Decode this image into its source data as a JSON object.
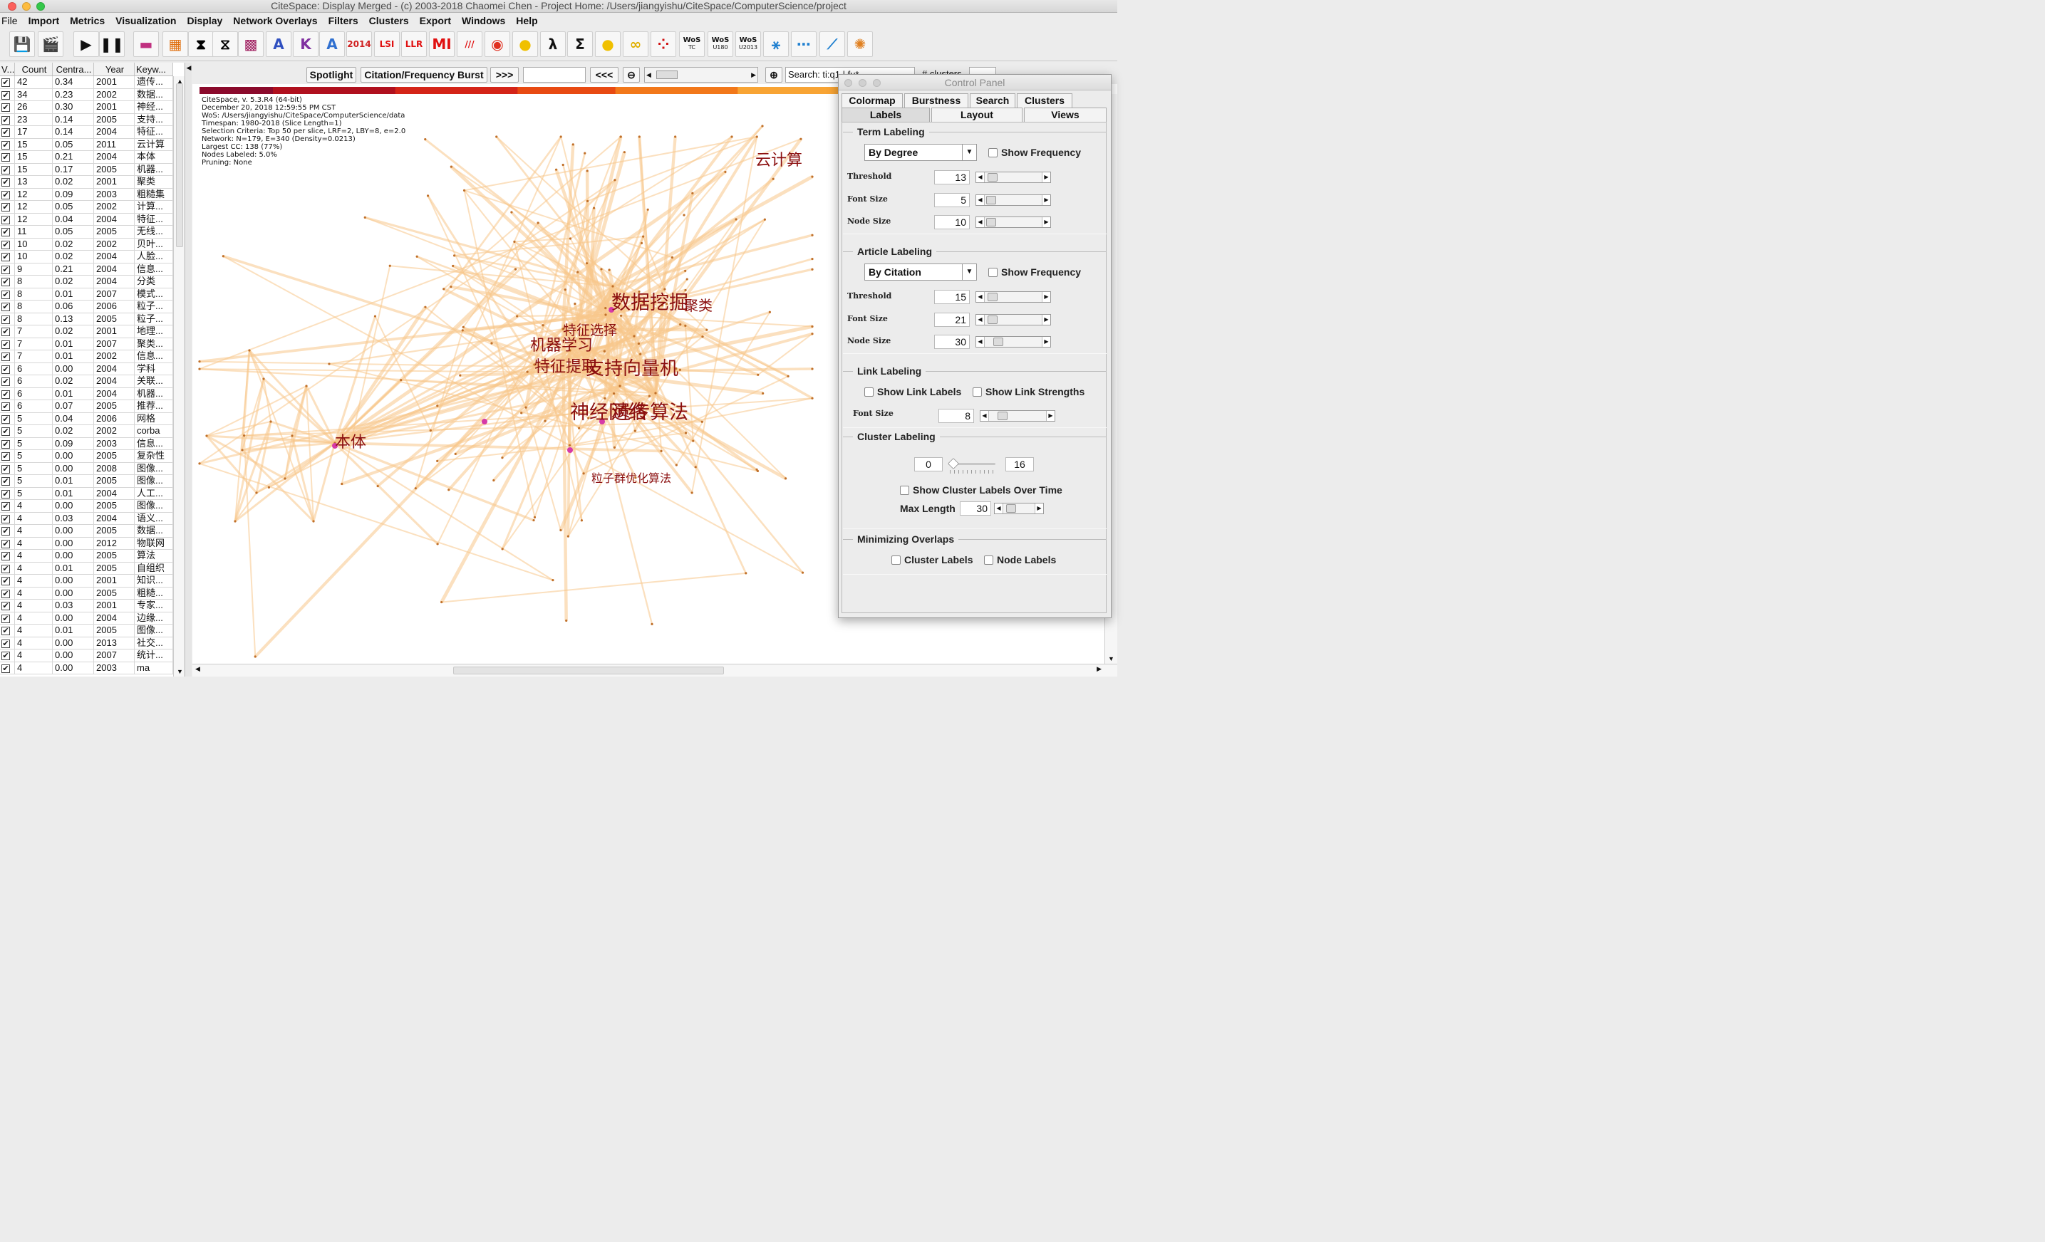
{
  "window": {
    "title": "CiteSpace: Display Merged - (c) 2003-2018 Chaomei Chen - Project Home: /Users/jiangyishu/CiteSpace/ComputerScience/project"
  },
  "menus": [
    "File",
    "Import",
    "Metrics",
    "Visualization",
    "Display",
    "Network Overlays",
    "Filters",
    "Clusters",
    "Export",
    "Windows",
    "Help"
  ],
  "toolbar": {
    "buttons": [
      {
        "icon": "save-icon",
        "glyph": "💾",
        "color": "#1b3f8f"
      },
      {
        "icon": "clapper-icon",
        "glyph": "🎬",
        "color": "#111"
      },
      {
        "icon": "play-icon",
        "glyph": "▶",
        "color": "#111"
      },
      {
        "icon": "pause-icon",
        "glyph": "❚❚",
        "color": "#111"
      },
      {
        "icon": "gradient-line-icon",
        "glyph": "▬",
        "color": "#c03080"
      },
      {
        "icon": "color-grid-icon",
        "glyph": "▦",
        "color": "#e07010"
      },
      {
        "icon": "hourglass-black-icon",
        "glyph": "⧗",
        "color": "#000"
      },
      {
        "icon": "hourglass-outline-icon",
        "glyph": "⧖",
        "color": "#000"
      },
      {
        "icon": "cluster-blocks-icon",
        "glyph": "▩",
        "color": "#a02060"
      },
      {
        "icon": "triangle-a-icon",
        "glyph": "A",
        "color": "#3050c0"
      },
      {
        "icon": "triangle-k-icon",
        "glyph": "K",
        "color": "#8030a0"
      },
      {
        "icon": "triangle-a2-icon",
        "glyph": "A",
        "color": "#3070d0"
      },
      {
        "icon": "year-range-icon",
        "glyph": "2014",
        "color": "#d02020"
      },
      {
        "icon": "lsi-icon",
        "glyph": "LSI",
        "color": "#e01010"
      },
      {
        "icon": "llr-icon",
        "glyph": "LLR",
        "color": "#e01010"
      },
      {
        "icon": "mi-icon",
        "glyph": "MI",
        "color": "#e01010"
      },
      {
        "icon": "stripes-icon",
        "glyph": "///",
        "color": "#e01010"
      },
      {
        "icon": "target-icon",
        "glyph": "◉",
        "color": "#e03020"
      },
      {
        "icon": "yellow-circle-icon",
        "glyph": "●",
        "color": "#f0c000"
      },
      {
        "icon": "lambda-icon",
        "glyph": "λ",
        "color": "#111"
      },
      {
        "icon": "sigma-icon",
        "glyph": "Σ",
        "color": "#111"
      },
      {
        "icon": "magnifier-yellow-icon",
        "glyph": "●",
        "color": "#f0c000"
      },
      {
        "icon": "two-circles-icon",
        "glyph": "∞",
        "color": "#e0b000"
      },
      {
        "icon": "color-dots-icon",
        "glyph": "⁘",
        "color": "#d01010"
      },
      {
        "icon": "wos-tc-icon",
        "wos_label": "WoS",
        "wos_sub": "TC"
      },
      {
        "icon": "wos-u180-icon",
        "wos_label": "WoS",
        "wos_sub": "U180"
      },
      {
        "icon": "wos-u2013-icon",
        "wos_label": "WoS",
        "wos_sub": "U2013"
      },
      {
        "icon": "network-node-icon",
        "glyph": "⚹",
        "color": "#2080d0"
      },
      {
        "icon": "dotted-network-icon",
        "glyph": "⋯",
        "color": "#2080d0"
      },
      {
        "icon": "link-line-icon",
        "glyph": "⟋",
        "color": "#2080d0"
      },
      {
        "icon": "starburst-icon",
        "glyph": "✺",
        "color": "#e08020"
      }
    ]
  },
  "table": {
    "headers": [
      "V...",
      "Count",
      "Centra...",
      "Year",
      "Keyw..."
    ],
    "rows": [
      [
        "42",
        "0.34",
        "2001",
        "遗传..."
      ],
      [
        "34",
        "0.23",
        "2002",
        "数据..."
      ],
      [
        "26",
        "0.30",
        "2001",
        "神经..."
      ],
      [
        "23",
        "0.14",
        "2005",
        "支持..."
      ],
      [
        "17",
        "0.14",
        "2004",
        "特征..."
      ],
      [
        "15",
        "0.05",
        "2011",
        "云计算"
      ],
      [
        "15",
        "0.21",
        "2004",
        "本体"
      ],
      [
        "15",
        "0.17",
        "2005",
        "机器..."
      ],
      [
        "13",
        "0.02",
        "2001",
        "聚类"
      ],
      [
        "12",
        "0.09",
        "2003",
        "粗糙集"
      ],
      [
        "12",
        "0.05",
        "2002",
        "计算..."
      ],
      [
        "12",
        "0.04",
        "2004",
        "特征..."
      ],
      [
        "11",
        "0.05",
        "2005",
        "无线..."
      ],
      [
        "10",
        "0.02",
        "2002",
        "贝叶..."
      ],
      [
        "10",
        "0.02",
        "2004",
        "人脸..."
      ],
      [
        "9",
        "0.21",
        "2004",
        "信息..."
      ],
      [
        "8",
        "0.02",
        "2004",
        "分类"
      ],
      [
        "8",
        "0.01",
        "2007",
        "模式..."
      ],
      [
        "8",
        "0.06",
        "2006",
        "粒子..."
      ],
      [
        "8",
        "0.13",
        "2005",
        "粒子..."
      ],
      [
        "7",
        "0.02",
        "2001",
        "地理..."
      ],
      [
        "7",
        "0.01",
        "2007",
        "聚类..."
      ],
      [
        "7",
        "0.01",
        "2002",
        "信息..."
      ],
      [
        "6",
        "0.00",
        "2004",
        "学科"
      ],
      [
        "6",
        "0.02",
        "2004",
        "关联..."
      ],
      [
        "6",
        "0.01",
        "2004",
        "机器..."
      ],
      [
        "6",
        "0.07",
        "2005",
        "推荐..."
      ],
      [
        "5",
        "0.04",
        "2006",
        "网格"
      ],
      [
        "5",
        "0.02",
        "2002",
        "corba"
      ],
      [
        "5",
        "0.09",
        "2003",
        "信息..."
      ],
      [
        "5",
        "0.00",
        "2005",
        "复杂性"
      ],
      [
        "5",
        "0.00",
        "2008",
        "图像..."
      ],
      [
        "5",
        "0.01",
        "2005",
        "图像..."
      ],
      [
        "5",
        "0.01",
        "2004",
        "人工..."
      ],
      [
        "4",
        "0.00",
        "2005",
        "图像..."
      ],
      [
        "4",
        "0.03",
        "2004",
        "语义..."
      ],
      [
        "4",
        "0.00",
        "2005",
        "数据..."
      ],
      [
        "4",
        "0.00",
        "2012",
        "物联网"
      ],
      [
        "4",
        "0.00",
        "2005",
        "算法"
      ],
      [
        "4",
        "0.01",
        "2005",
        "自组织"
      ],
      [
        "4",
        "0.00",
        "2001",
        "知识..."
      ],
      [
        "4",
        "0.00",
        "2005",
        "粗糙..."
      ],
      [
        "4",
        "0.03",
        "2001",
        "专家..."
      ],
      [
        "4",
        "0.00",
        "2004",
        "边缘..."
      ],
      [
        "4",
        "0.01",
        "2005",
        "图像..."
      ],
      [
        "4",
        "0.00",
        "2013",
        "社交..."
      ],
      [
        "4",
        "0.00",
        "2007",
        "统计..."
      ],
      [
        "4",
        "0.00",
        "2003",
        "ma"
      ]
    ]
  },
  "viz_toolbar": {
    "spotlight": "Spotlight",
    "burst": "Citation/Frequency Burst",
    "next": ">>>",
    "prev": "<<<",
    "search_text": "Search: ti:q1 | fu*",
    "clusters_label": "# clusters"
  },
  "network_info": [
    "CiteSpace, v. 5.3.R4 (64-bit)",
    "December 20, 2018 12:59:55 PM CST",
    "WoS: /Users/jiangyishu/CiteSpace/ComputerScience/data",
    "Timespan: 1980-2018 (Slice Length=1)",
    "Selection Criteria: Top 50 per slice, LRF=2, LBY=8, e=2.0",
    "Network: N=179, E=340 (Density=0.0213)",
    "Largest CC: 138 (77%)",
    "Nodes Labeled: 5.0%",
    "Pruning: None"
  ],
  "network_labels": [
    "云计算",
    "数据挖掘",
    "聚类",
    "特征选择",
    "机器学习",
    "特征提取",
    "支持向量机",
    "神经网络",
    "遗传算法",
    "本体",
    "粒子群优化算法"
  ],
  "colors": {
    "edge": "#f7c68a",
    "node": "#c0702a",
    "label": "#8b0f0f",
    "highlight_node": "#d63aa8",
    "colorbar": [
      "#8b0a2c",
      "#b0101e",
      "#d42418",
      "#e84a12",
      "#f2781a",
      "#f8a434",
      "#fbd07a"
    ]
  },
  "control_panel": {
    "title": "Control Panel",
    "tabs_row1": [
      "Colormap",
      "Burstness",
      "Search",
      "Clusters"
    ],
    "tabs_row2": [
      "Labels",
      "Layout",
      "Views"
    ],
    "term_labeling": {
      "title": "Term Labeling",
      "select": "By Degree",
      "show_frequency": "Show Frequency",
      "threshold_label": "Threshold",
      "threshold": "13",
      "font_size_label": "Font Size",
      "font_size": "5",
      "node_size_label": "Node Size",
      "node_size": "10"
    },
    "article_labeling": {
      "title": "Article Labeling",
      "select": "By Citation",
      "show_frequency": "Show Frequency",
      "threshold_label": "Threshold",
      "threshold": "15",
      "font_size_label": "Font Size",
      "font_size": "21",
      "node_size_label": "Node Size",
      "node_size": "30"
    },
    "link_labeling": {
      "title": "Link Labeling",
      "show_link_labels": "Show Link Labels",
      "show_link_strengths": "Show Link Strengths",
      "font_size_label": "Font Size",
      "font_size": "8"
    },
    "cluster_labeling": {
      "title": "Cluster Labeling",
      "min": "0",
      "max": "16",
      "over_time": "Show Cluster Labels Over Time",
      "max_length_label": "Max Length",
      "max_length": "30"
    },
    "minimizing_overlaps": {
      "title": "Minimizing Overlaps",
      "cluster_labels": "Cluster Labels",
      "node_labels": "Node Labels"
    }
  }
}
